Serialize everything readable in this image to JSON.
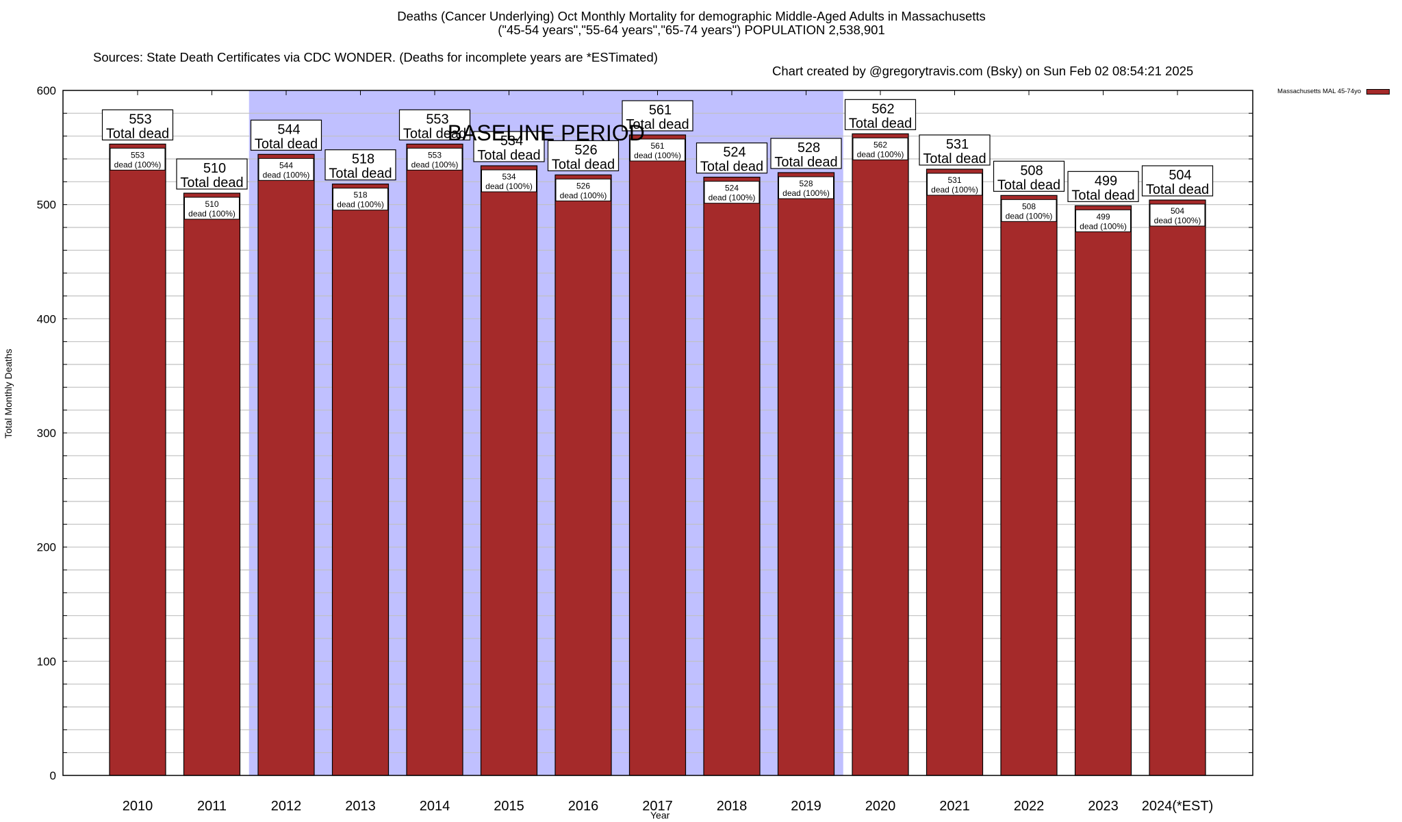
{
  "header": {
    "title_line1": "Deaths (Cancer Underlying) Oct Monthly Mortality for demographic Middle-Aged Adults in Massachusetts",
    "title_line2": "(\"45-54 years\",\"55-64 years\",\"65-74 years\") POPULATION 2,538,901",
    "sources": "Sources: State Death Certificates via CDC WONDER. (Deaths for incomplete years are *ESTimated)",
    "credit": "Chart created by @gregorytravis.com (Bsky) on Sun Feb 02 08:54:21 2025"
  },
  "colors": {
    "bar": "#a52a2a",
    "baseline_shade": "#c0c0ff",
    "grid": "#c0c0c0"
  },
  "chart_data": {
    "type": "bar",
    "title": "Deaths (Cancer Underlying) Oct Monthly Mortality for demographic Middle-Aged Adults in Massachusetts",
    "xlabel": "Year",
    "ylabel": "Total Monthly Deaths",
    "ylim": [
      0,
      600
    ],
    "yticks": [
      0,
      100,
      200,
      300,
      400,
      500,
      600
    ],
    "minor_grid_step": 20,
    "grid": true,
    "legend": {
      "position": "top-right",
      "entries": [
        "Massachusetts MAL 45-74yo"
      ]
    },
    "categories": [
      "2010",
      "2011",
      "2012",
      "2013",
      "2014",
      "2015",
      "2016",
      "2017",
      "2018",
      "2019",
      "2020",
      "2021",
      "2022",
      "2023",
      "2024(*EST)"
    ],
    "series": [
      {
        "name": "Massachusetts MAL 45-74yo",
        "values": [
          553,
          510,
          544,
          518,
          553,
          534,
          526,
          561,
          524,
          528,
          562,
          531,
          508,
          499,
          504
        ]
      }
    ],
    "top_label_suffix": "Total dead",
    "inner_label_suffix": "dead (100%)",
    "baseline_period": {
      "label": "BASELINE PERIOD",
      "from": "2012",
      "to": "2019"
    }
  }
}
